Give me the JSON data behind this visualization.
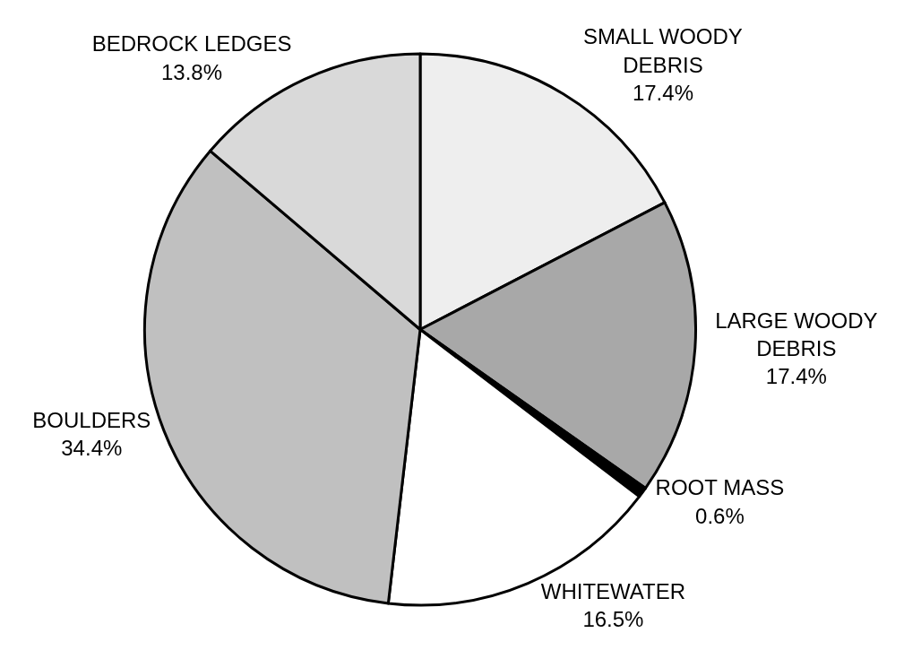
{
  "chart_data": {
    "type": "pie",
    "categories": [
      "SMALL WOODY\nDEBRIS",
      "LARGE WOODY\nDEBRIS",
      "ROOT MASS",
      "WHITEWATER",
      "BOULDERS",
      "BEDROCK LEDGES"
    ],
    "values": [
      17.4,
      17.4,
      0.6,
      16.5,
      34.4,
      13.8
    ],
    "value_labels": [
      "17.4%",
      "17.4%",
      "0.6%",
      "16.5%",
      "34.4%",
      "13.8%"
    ],
    "colors": [
      "#eeeeee",
      "#a8a8a8",
      "#000000",
      "#ffffff",
      "#c0c0c0",
      "#d9d9d9"
    ],
    "legend": false
  }
}
